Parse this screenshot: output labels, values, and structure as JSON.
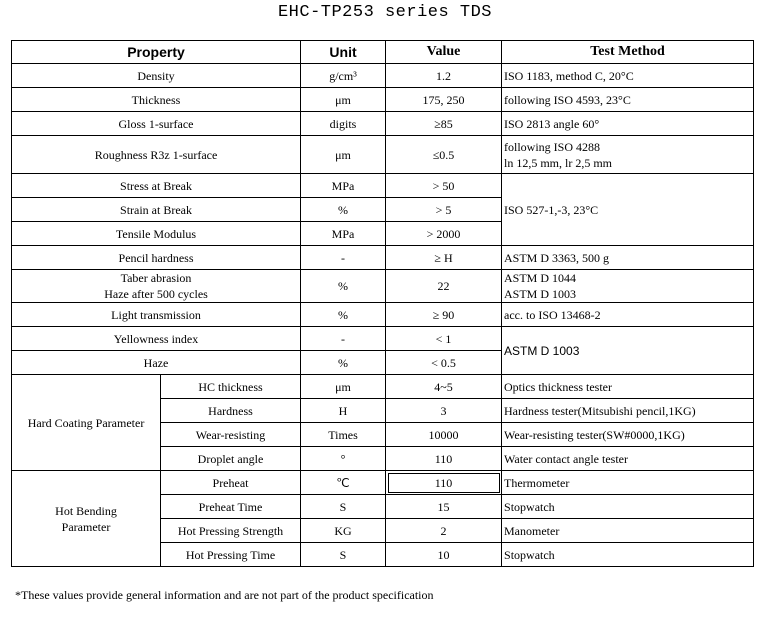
{
  "title": "EHC-TP253 series TDS",
  "headers": {
    "property": "Property",
    "unit": "Unit",
    "value": "Value",
    "method": "Test Method"
  },
  "rows": {
    "density": {
      "property": "Density",
      "unit": "g/cm³",
      "value": "1.2",
      "method": "ISO 1183, method C, 20°C"
    },
    "thickness": {
      "property": "Thickness",
      "unit": "μm",
      "value": "175, 250",
      "method": "following ISO 4593, 23°C"
    },
    "gloss": {
      "property": "Gloss 1-surface",
      "unit": "digits",
      "value": "≥85",
      "method": "ISO 2813 angle 60°"
    },
    "roughness": {
      "property": "Roughness R3z 1-surface",
      "unit": "μm",
      "value": "≤0.5",
      "method_line1": "following ISO 4288",
      "method_line2": "ln 12,5 mm, lr 2,5 mm"
    },
    "stress": {
      "property": "Stress at Break",
      "unit": "MPa",
      "value": "> 50"
    },
    "strain": {
      "property": "Strain at Break",
      "unit": "%",
      "value": "> 5"
    },
    "tensile": {
      "property": "Tensile Modulus",
      "unit": "MPa",
      "value": "> 2000"
    },
    "iso527_method": "ISO 527-1,-3, 23°C",
    "pencil": {
      "property": "Pencil hardness",
      "unit": "-",
      "value": "≥ H",
      "method": "ASTM D 3363, 500 g"
    },
    "taber": {
      "property_line1": "Taber abrasion",
      "property_line2": "Haze after 500 cycles",
      "unit": "%",
      "value": "22",
      "method_line1": "ASTM D 1044",
      "method_line2": "ASTM D 1003"
    },
    "light": {
      "property": "Light transmission",
      "unit": "%",
      "value": "≥ 90",
      "method": "acc. to ISO 13468-2"
    },
    "yellowness": {
      "property": "Yellowness index",
      "unit": "-",
      "value": "< 1"
    },
    "haze": {
      "property": "Haze",
      "unit": "%",
      "value": "< 0.5"
    },
    "astm1003_method": "ASTM D 1003"
  },
  "hard_coating": {
    "group": "Hard Coating Parameter",
    "items": [
      {
        "name": "HC thickness",
        "unit": "μm",
        "value": "4~5",
        "method": "Optics thickness tester"
      },
      {
        "name": "Hardness",
        "unit": "H",
        "value": "3",
        "method": "Hardness tester(Mitsubishi pencil,1KG)"
      },
      {
        "name": "Wear-resisting",
        "unit": "Times",
        "value": "10000",
        "method": "Wear-resisting tester(SW#0000,1KG)"
      },
      {
        "name": "Droplet angle",
        "unit": "°",
        "value": "110",
        "method": "Water contact angle tester"
      }
    ]
  },
  "hot_bending": {
    "group_line1": "Hot Bending",
    "group_line2": "Parameter",
    "items": [
      {
        "name": "Preheat",
        "unit": "℃",
        "value": "110",
        "method": "Thermometer"
      },
      {
        "name": "Preheat Time",
        "unit": "S",
        "value": "15",
        "method": "Stopwatch"
      },
      {
        "name": "Hot Pressing Strength",
        "unit": "KG",
        "value": "2",
        "method": "Manometer"
      },
      {
        "name": "Hot Pressing Time",
        "unit": "S",
        "value": "10",
        "method": "Stopwatch"
      }
    ]
  },
  "footnote": "*These values provide general information and are not part of the product specification"
}
